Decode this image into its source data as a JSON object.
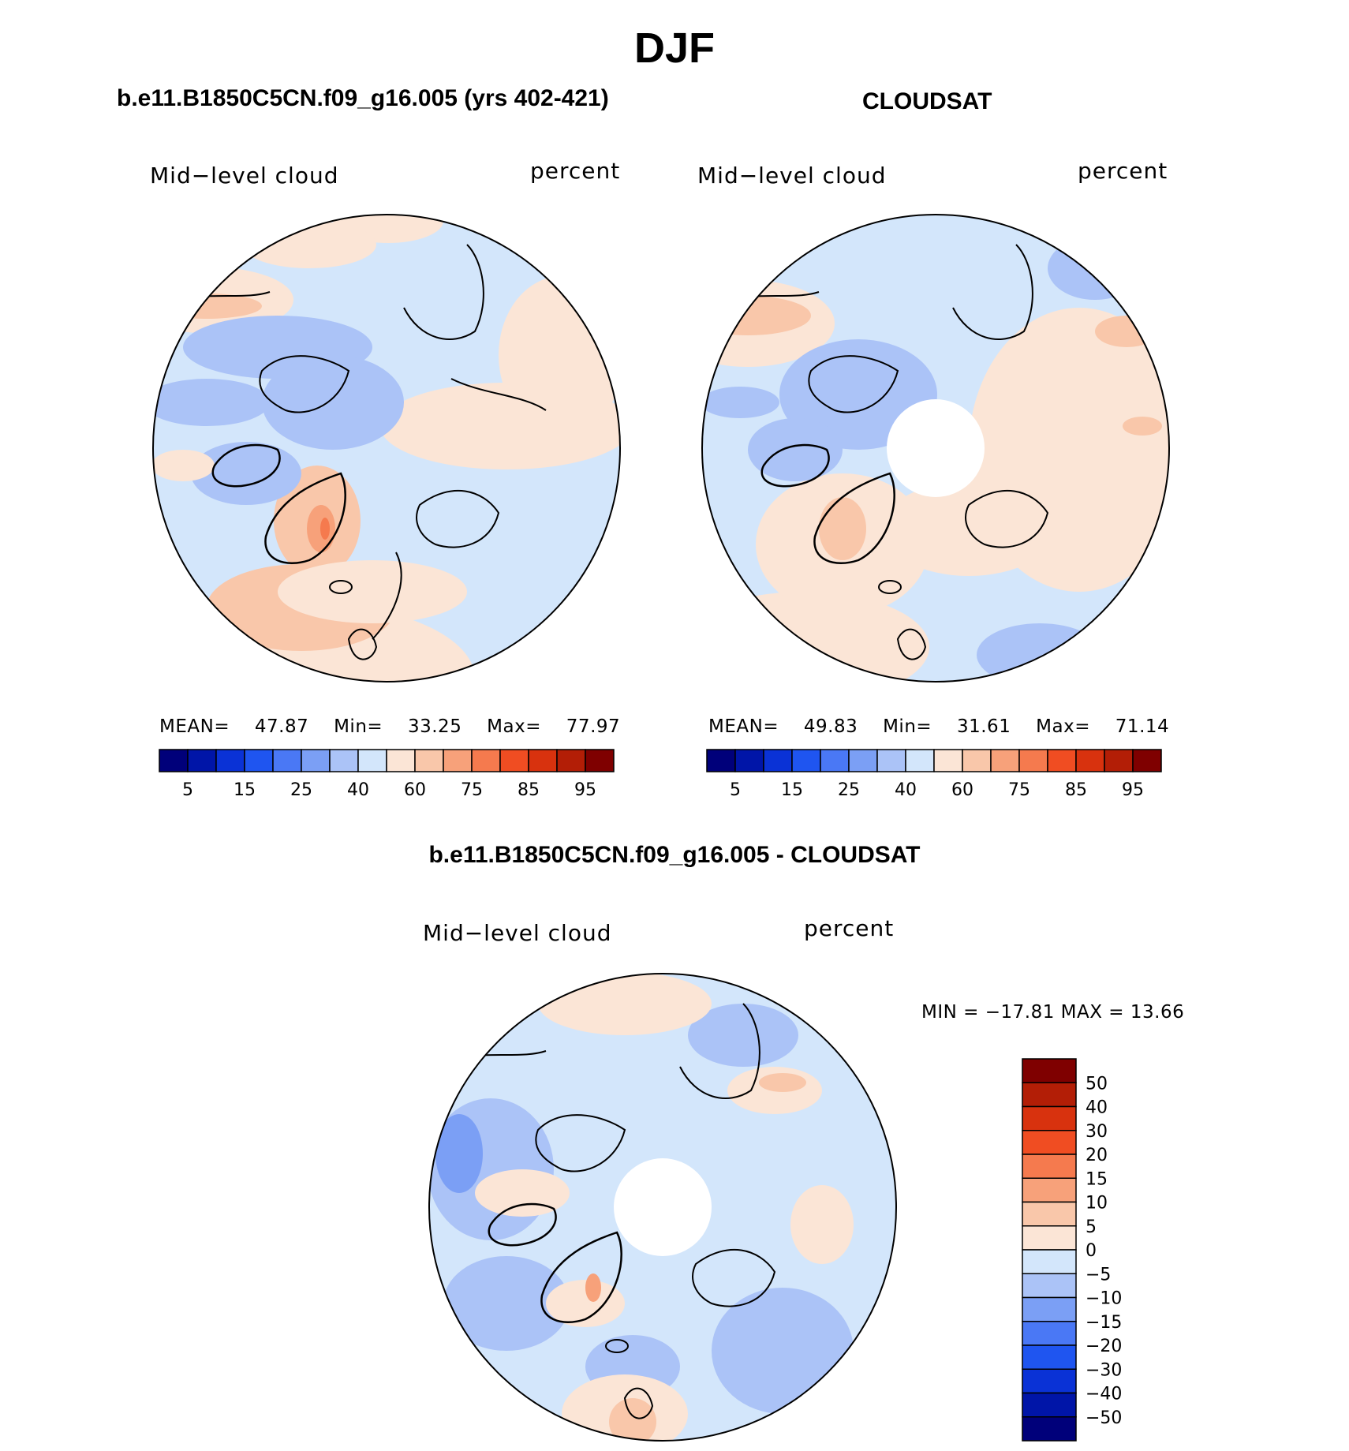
{
  "main_title": "DJF",
  "panels": {
    "model": {
      "title": "b.e11.B1850C5CN.f09_g16.005 (yrs 402-421)",
      "left_label": "Mid−level cloud",
      "right_label": "percent",
      "mean_label": "MEAN=",
      "mean": "47.87",
      "min_label": "Min=",
      "min": "33.25",
      "max_label": "Max=",
      "max": "77.97"
    },
    "obs": {
      "title": "CLOUDSAT",
      "left_label": "Mid−level cloud",
      "right_label": "percent",
      "mean_label": "MEAN=",
      "mean": "49.83",
      "min_label": "Min=",
      "min": "31.61",
      "max_label": "Max=",
      "max": "71.14"
    },
    "diff": {
      "title": "b.e11.B1850C5CN.f09_g16.005 - CLOUDSAT",
      "left_label": "Mid−level cloud",
      "right_label": "percent",
      "minmax_text": "MIN = −17.81  MAX =   13.66"
    }
  },
  "chart_data": [
    {
      "type": "heatmap",
      "projection": "north-polar-stereographic",
      "title": "b.e11.B1850C5CN.f09_g16.005 (yrs 402-421)",
      "variable": "Mid-level cloud",
      "units": "percent",
      "mean": 47.87,
      "min": 33.25,
      "max": 77.97,
      "colorbar": {
        "orientation": "horizontal",
        "levels": [
          5,
          10,
          15,
          20,
          25,
          30,
          40,
          50,
          60,
          70,
          75,
          80,
          85,
          90,
          95
        ],
        "tick_labels": [
          "5",
          "15",
          "25",
          "40",
          "60",
          "75",
          "85",
          "95"
        ],
        "colors": [
          "#00007a",
          "#0015a8",
          "#0a32d6",
          "#1f55f0",
          "#4a78f5",
          "#7b9ff5",
          "#abc3f7",
          "#d3e6fb",
          "#fbe5d6",
          "#f9c7aa",
          "#f7a17a",
          "#f57a4e",
          "#f04d22",
          "#d8320e",
          "#b31e06",
          "#7f0000"
        ]
      }
    },
    {
      "type": "heatmap",
      "projection": "north-polar-stereographic",
      "title": "CLOUDSAT",
      "variable": "Mid-level cloud",
      "units": "percent",
      "mean": 49.83,
      "min": 31.61,
      "max": 71.14,
      "missing_region": "polar cap",
      "colorbar": {
        "orientation": "horizontal",
        "levels": [
          5,
          10,
          15,
          20,
          25,
          30,
          40,
          50,
          60,
          70,
          75,
          80,
          85,
          90,
          95
        ],
        "tick_labels": [
          "5",
          "15",
          "25",
          "40",
          "60",
          "75",
          "85",
          "95"
        ],
        "colors": [
          "#00007a",
          "#0015a8",
          "#0a32d6",
          "#1f55f0",
          "#4a78f5",
          "#7b9ff5",
          "#abc3f7",
          "#d3e6fb",
          "#fbe5d6",
          "#f9c7aa",
          "#f7a17a",
          "#f57a4e",
          "#f04d22",
          "#d8320e",
          "#b31e06",
          "#7f0000"
        ]
      }
    },
    {
      "type": "heatmap",
      "projection": "north-polar-stereographic",
      "title": "b.e11.B1850C5CN.f09_g16.005 - CLOUDSAT",
      "variable": "Mid-level cloud",
      "units": "percent",
      "min": -17.81,
      "max": 13.66,
      "missing_region": "polar cap",
      "colorbar": {
        "orientation": "vertical",
        "tick_labels": [
          "50",
          "40",
          "30",
          "20",
          "15",
          "10",
          "5",
          "0",
          "−5",
          "−10",
          "−15",
          "−20",
          "−30",
          "−40",
          "−50"
        ],
        "colors": [
          "#7f0000",
          "#b31e06",
          "#d8320e",
          "#f04d22",
          "#f57a4e",
          "#f7a17a",
          "#f9c7aa",
          "#fbe5d6",
          "#d3e6fb",
          "#abc3f7",
          "#7b9ff5",
          "#4a78f5",
          "#1f55f0",
          "#0a32d6",
          "#0015a8",
          "#00007a"
        ]
      }
    }
  ]
}
